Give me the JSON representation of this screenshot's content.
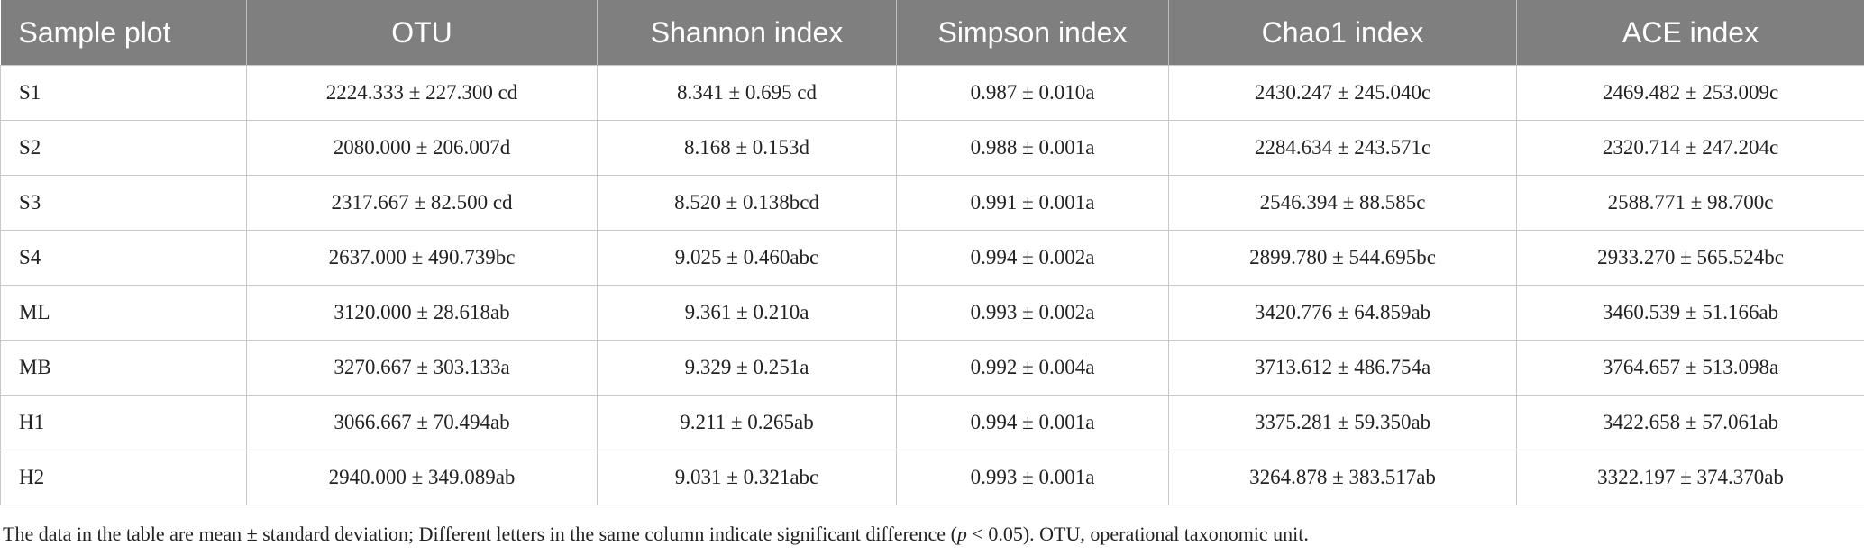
{
  "table": {
    "header": [
      "Sample plot",
      "OTU",
      "Shannon index",
      "Simpson index",
      "Chao1 index",
      "ACE index"
    ],
    "rows": [
      [
        "S1",
        "2224.333 ± 227.300 cd",
        "8.341 ± 0.695 cd",
        "0.987 ± 0.010a",
        "2430.247 ± 245.040c",
        "2469.482 ± 253.009c"
      ],
      [
        "S2",
        "2080.000 ± 206.007d",
        "8.168 ± 0.153d",
        "0.988 ± 0.001a",
        "2284.634 ± 243.571c",
        "2320.714 ± 247.204c"
      ],
      [
        "S3",
        "2317.667 ± 82.500 cd",
        "8.520 ± 0.138bcd",
        "0.991 ± 0.001a",
        "2546.394 ± 88.585c",
        "2588.771 ± 98.700c"
      ],
      [
        "S4",
        "2637.000 ± 490.739bc",
        "9.025 ± 0.460abc",
        "0.994 ± 0.002a",
        "2899.780 ± 544.695bc",
        "2933.270 ± 565.524bc"
      ],
      [
        "ML",
        "3120.000 ± 28.618ab",
        "9.361 ± 0.210a",
        "0.993 ± 0.002a",
        "3420.776 ± 64.859ab",
        "3460.539 ± 51.166ab"
      ],
      [
        "MB",
        "3270.667 ± 303.133a",
        "9.329 ± 0.251a",
        "0.992 ± 0.004a",
        "3713.612 ± 486.754a",
        "3764.657 ± 513.098a"
      ],
      [
        "H1",
        "3066.667 ± 70.494ab",
        "9.211 ± 0.265ab",
        "0.994 ± 0.001a",
        "3375.281 ± 59.350ab",
        "3422.658 ± 57.061ab"
      ],
      [
        "H2",
        "2940.000 ± 349.089ab",
        "9.031 ± 0.321abc",
        "0.993 ± 0.001a",
        "3264.878 ± 383.517ab",
        "3322.197 ± 374.370ab"
      ]
    ]
  },
  "footnote": [
    "The data in the table are mean ± standard deviation; Different letters in the same column indicate significant difference (",
    "p",
    " < 0.05). OTU, operational taxonomic unit."
  ]
}
